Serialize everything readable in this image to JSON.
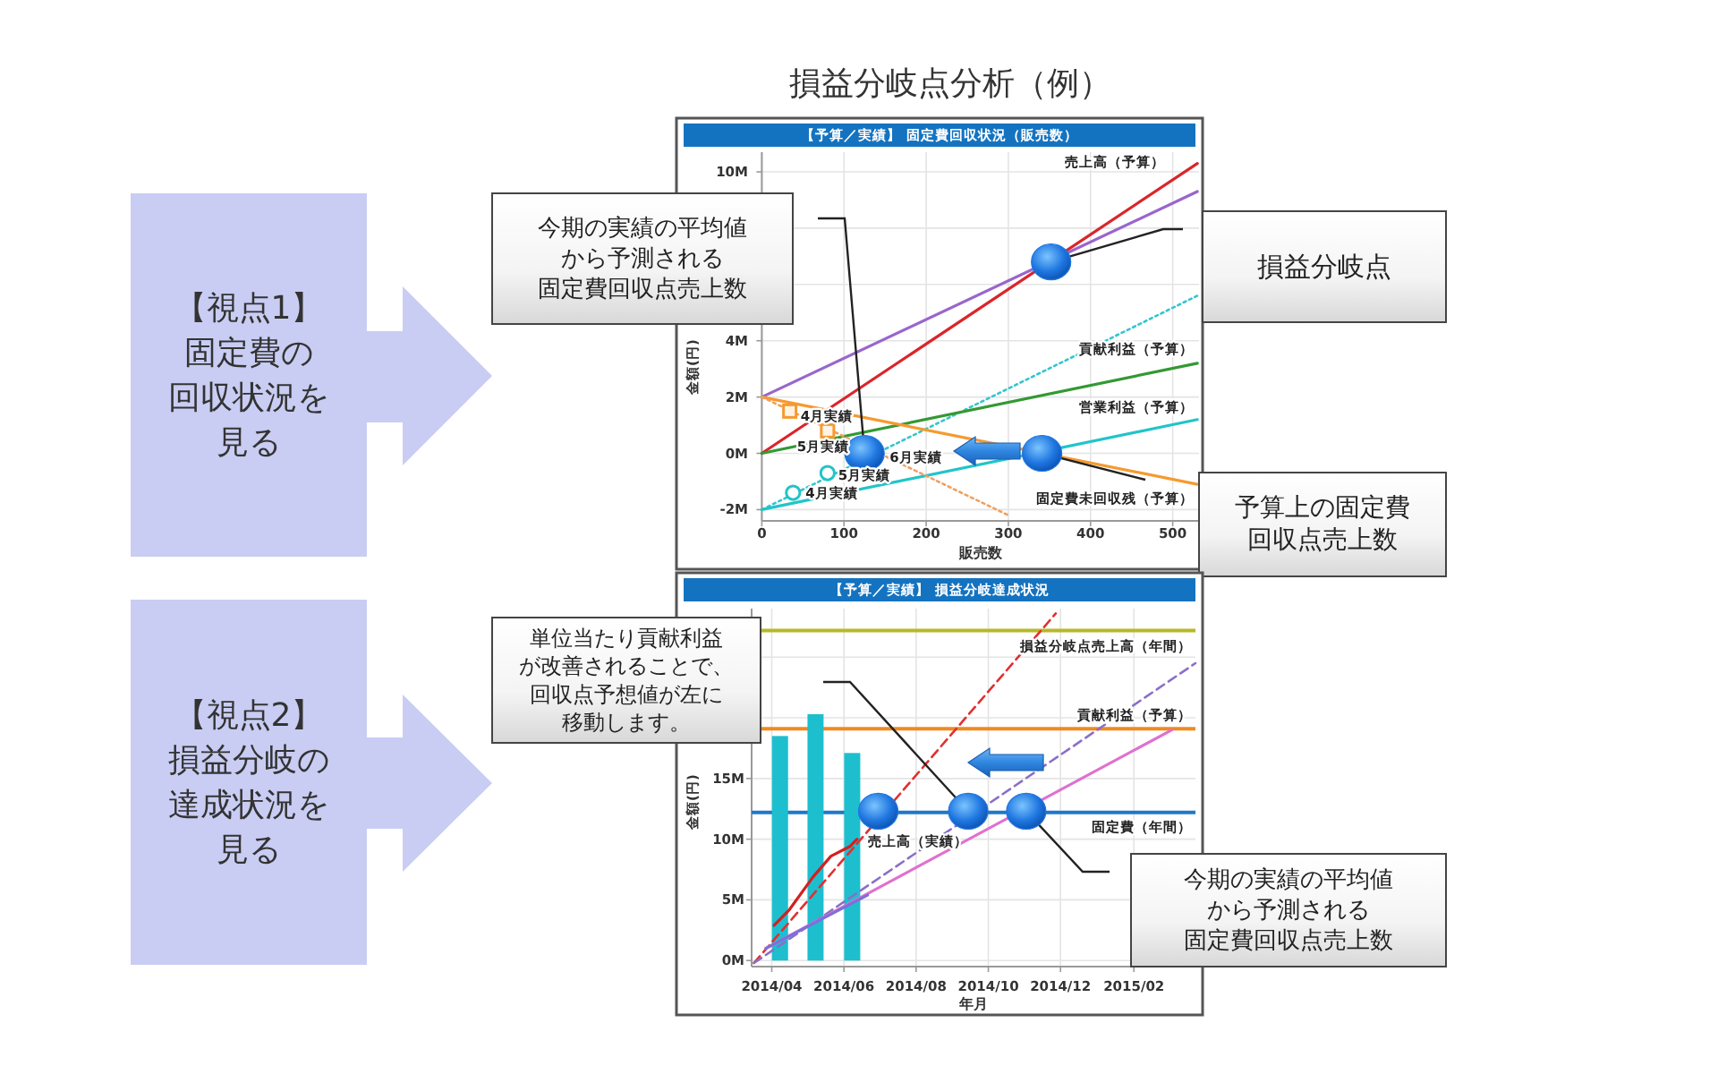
{
  "chart_data": [
    {
      "type": "other",
      "title": "損益分岐点分析（例）"
    },
    {
      "type": "line",
      "title": "【予算／実績】 固定費回収状況（販売数）",
      "xlabel": "販売数",
      "ylabel": "金額(円)",
      "grid": true,
      "xlim": [
        0,
        532
      ],
      "ylim": [
        -2.4,
        10.7
      ],
      "xticks": [
        0,
        100,
        200,
        300,
        400,
        500
      ],
      "yticks": [
        {
          "value": -2,
          "label": "-2M"
        },
        {
          "value": 0,
          "label": "0M"
        },
        {
          "value": 2,
          "label": "2M"
        },
        {
          "value": 4,
          "label": "4M"
        },
        {
          "value": 6,
          "label": null
        },
        {
          "value": 8,
          "label": null
        },
        {
          "value": 10,
          "label": "10M"
        }
      ],
      "series": [
        {
          "name": "売上高（予算）",
          "color": "#d9262b",
          "x": [
            0,
            530
          ],
          "values": [
            0,
            10.3
          ]
        },
        {
          "color": "#9966cc",
          "x": [
            0,
            530
          ],
          "values": [
            2,
            9.3
          ]
        },
        {
          "color": "#33c6cc",
          "line_style": "dotted",
          "x": [
            0,
            530
          ],
          "values": [
            -2,
            5.6
          ]
        },
        {
          "name": "貢献利益（予算）",
          "color": "#339933",
          "x": [
            0,
            530
          ],
          "values": [
            0,
            3.2
          ]
        },
        {
          "name": "営業利益（予算）",
          "color": "#22c4c8",
          "x": [
            0,
            530
          ],
          "values": [
            -2,
            1.2
          ]
        },
        {
          "name": "固定費未回収残（予算）",
          "color": "#f59a30",
          "x": [
            0,
            530
          ],
          "values": [
            2,
            -1.1
          ]
        },
        {
          "color": "#f0a060",
          "line_style": "dotted",
          "x": [
            0,
            300
          ],
          "values": [
            2,
            -2.2
          ]
        },
        {
          "type": "scatter",
          "marker": "square",
          "color": "#f59a30",
          "x": [
            34,
            80
          ],
          "values": [
            1.5,
            0.8
          ]
        },
        {
          "type": "scatter",
          "marker": "circle",
          "color": "#22c4c8",
          "x": [
            38,
            80
          ],
          "values": [
            -1.4,
            -0.7
          ]
        },
        {
          "type": "bubble",
          "color": "#1f77e0",
          "x": [
            125,
            341,
            352
          ],
          "values": [
            0,
            0,
            6.8
          ],
          "sizes": [
            1,
            1,
            1
          ]
        }
      ],
      "annotations": [
        "【視点1】固定費の回収状況を見る",
        "今期の実績の平均値から予測される固定費回収点売上数",
        "損益分岐点",
        "予算上の固定費回収点売上数",
        {
          "text": "4月実績",
          "x": 34,
          "y": 1.5
        },
        {
          "text": "5月実績",
          "x": 80,
          "y": 0.8
        },
        {
          "text": "6月実績",
          "x": 125,
          "y": 0
        },
        {
          "text": "5月実績",
          "x": 80,
          "y": -0.7
        },
        {
          "text": "4月実績",
          "x": 38,
          "y": -1.4
        }
      ]
    },
    {
      "type": "line",
      "title": "【予算／実績】 損益分岐達成状況",
      "xlabel": "年月",
      "ylabel": "金額(円)",
      "grid": true,
      "xlim": [
        "2014-03-15",
        "2015-03-25"
      ],
      "ylim": [
        -0.5,
        29
      ],
      "xticks": [
        {
          "value": "2014-04-01",
          "label": "2014/04"
        },
        {
          "value": "2014-06-01",
          "label": "2014/06"
        },
        {
          "value": "2014-08-01",
          "label": "2014/08"
        },
        {
          "value": "2014-10-01",
          "label": "2014/10"
        },
        {
          "value": "2014-12-01",
          "label": "2014/12"
        },
        {
          "value": "2015-02-01",
          "label": "2015/02"
        }
      ],
      "yticks": [
        {
          "value": 0,
          "label": "0M"
        },
        {
          "value": 5,
          "label": "5M"
        },
        {
          "value": 10,
          "label": "10M"
        },
        {
          "value": 15,
          "label": "15M"
        },
        {
          "value": 20,
          "label": null
        },
        {
          "value": 25,
          "label": null
        }
      ],
      "series": [
        {
          "type": "bar",
          "color": "#1dbfcf",
          "x": [
            "2014-04-08",
            "2014-05-08",
            "2014-06-08"
          ],
          "values": [
            18.5,
            20.3,
            17.1
          ]
        },
        {
          "name": "売上高（実績）",
          "color": "#d42020",
          "x": [
            "2014-04-03",
            "2014-04-16",
            "2014-05-06",
            "2014-05-21",
            "2014-06-06",
            "2014-06-12"
          ],
          "values": [
            2.9,
            4.2,
            6.9,
            8.6,
            9.4,
            10.0
          ]
        },
        {
          "color": "#e03030",
          "line_style": "dashed",
          "x": [
            "2014-03-17",
            "2014-11-27"
          ],
          "values": [
            -0.2,
            28.6
          ]
        },
        {
          "color": "#8a6fc8",
          "line_style": "dashed",
          "x": [
            "2014-03-17",
            "2015-03-25"
          ],
          "values": [
            -0.2,
            24.5
          ]
        },
        {
          "color": "#e070d0",
          "x": [
            "2014-03-27",
            "2015-03-05"
          ],
          "values": [
            1.0,
            19.0
          ]
        },
        {
          "color": "#7f6fd8",
          "x": [
            "2014-03-27",
            "2014-06-21"
          ],
          "values": [
            1.0,
            5.4
          ]
        },
        {
          "type": "bubble",
          "color": "#1f77e0",
          "x": [
            "2014-06-30",
            "2014-09-14",
            "2014-11-02"
          ],
          "values": [
            12.3,
            12.3,
            12.3
          ],
          "sizes": [
            1,
            1,
            1
          ]
        }
      ],
      "ref_lines": [
        {
          "axis": "y",
          "value": 27.2,
          "label": "損益分岐点売上高（年間）",
          "color": "#b8b826"
        },
        {
          "axis": "y",
          "value": 19.1,
          "label": "貢献利益（予算）",
          "color": "#f08a20"
        },
        {
          "axis": "y",
          "value": 12.2,
          "label": "固定費（年間）",
          "color": "#1e78c8"
        }
      ],
      "annotations": [
        "【視点2】損益分岐の達成状況を見る",
        "単位当たり貢献利益が改善されることで、回収点予想値が左に移動します。",
        "今期の実績の平均値から予測される固定費回収点売上数"
      ]
    }
  ]
}
